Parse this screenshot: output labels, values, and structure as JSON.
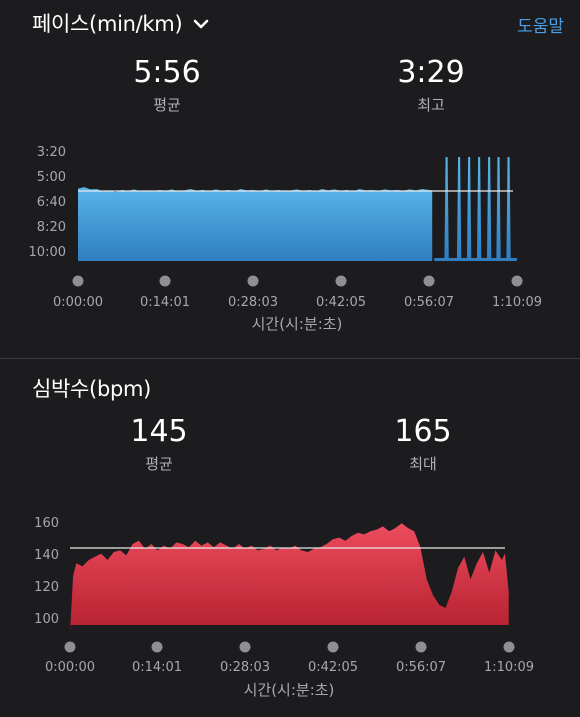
{
  "pace": {
    "title": "페이스(min/km)",
    "help": "도움말",
    "avg_value": "5:56",
    "avg_label": "평균",
    "max_value": "3:29",
    "max_label": "최고",
    "chart_data": {
      "type": "area",
      "color": "#4aa3e0",
      "ylabels": [
        "3:20",
        "5:00",
        "6:40",
        "8:20",
        "10:00"
      ],
      "xlabels": [
        "0:00:00",
        "0:14:01",
        "0:28:03",
        "0:42:05",
        "0:56:07",
        "1:10:09"
      ],
      "xlabel": "시간(시:분:초)",
      "average_line": "5:56",
      "series": [
        {
          "x": 0,
          "y": 5.0
        },
        {
          "x": 1,
          "y": 4.85
        },
        {
          "x": 2,
          "y": 5.1
        },
        {
          "x": 3,
          "y": 5.05
        },
        {
          "x": 4,
          "y": 5.3
        },
        {
          "x": 5,
          "y": 5.2
        },
        {
          "x": 6,
          "y": 5.4
        },
        {
          "x": 7,
          "y": 5.15
        },
        {
          "x": 8,
          "y": 5.25
        },
        {
          "x": 9,
          "y": 5.1
        },
        {
          "x": 10,
          "y": 5.35
        },
        {
          "x": 11,
          "y": 5.2
        },
        {
          "x": 12,
          "y": 5.3
        },
        {
          "x": 13,
          "y": 5.15
        },
        {
          "x": 14,
          "y": 5.25
        },
        {
          "x": 15,
          "y": 5.1
        },
        {
          "x": 16,
          "y": 5.3
        },
        {
          "x": 17,
          "y": 5.2
        },
        {
          "x": 18,
          "y": 5.05
        },
        {
          "x": 19,
          "y": 5.25
        },
        {
          "x": 20,
          "y": 5.15
        },
        {
          "x": 21,
          "y": 5.3
        },
        {
          "x": 22,
          "y": 5.1
        },
        {
          "x": 23,
          "y": 5.25
        },
        {
          "x": 24,
          "y": 5.15
        },
        {
          "x": 25,
          "y": 5.3
        },
        {
          "x": 26,
          "y": 5.05
        },
        {
          "x": 27,
          "y": 5.2
        },
        {
          "x": 28,
          "y": 5.15
        },
        {
          "x": 29,
          "y": 5.3
        },
        {
          "x": 30,
          "y": 5.1
        },
        {
          "x": 31,
          "y": 5.25
        },
        {
          "x": 32,
          "y": 5.15
        },
        {
          "x": 33,
          "y": 5.3
        },
        {
          "x": 34,
          "y": 5.2
        },
        {
          "x": 35,
          "y": 5.1
        },
        {
          "x": 36,
          "y": 5.25
        },
        {
          "x": 37,
          "y": 5.15
        },
        {
          "x": 38,
          "y": 5.3
        },
        {
          "x": 39,
          "y": 5.05
        },
        {
          "x": 40,
          "y": 5.2
        },
        {
          "x": 41,
          "y": 5.1
        },
        {
          "x": 42,
          "y": 5.25
        },
        {
          "x": 43,
          "y": 5.15
        },
        {
          "x": 44,
          "y": 5.3
        },
        {
          "x": 45,
          "y": 5.05
        },
        {
          "x": 46,
          "y": 5.2
        },
        {
          "x": 47,
          "y": 5.15
        },
        {
          "x": 48,
          "y": 5.25
        },
        {
          "x": 49,
          "y": 5.1
        },
        {
          "x": 50,
          "y": 5.2
        },
        {
          "x": 51,
          "y": 5.15
        },
        {
          "x": 52,
          "y": 5.25
        },
        {
          "x": 53,
          "y": 5.1
        },
        {
          "x": 54,
          "y": 5.2
        },
        {
          "x": 55,
          "y": 5.05
        },
        {
          "x": 56,
          "y": 5.15
        },
        {
          "x": 56.6,
          "y": 5.2
        }
      ],
      "spikes": [
        58.9,
        60.9,
        62.5,
        64.1,
        65.7,
        67.2,
        68.8
      ]
    }
  },
  "hr": {
    "title": "심박수(bpm)",
    "avg_value": "145",
    "avg_label": "평균",
    "max_value": "165",
    "max_label": "최대",
    "chart_data": {
      "type": "area",
      "color": "#e0344a",
      "ylabels": [
        "160",
        "140",
        "120",
        "100"
      ],
      "xlabels": [
        "0:00:00",
        "0:14:01",
        "0:28:03",
        "0:42:05",
        "0:56:07",
        "1:10:09"
      ],
      "xlabel": "시간(시:분:초)",
      "average_line": 145,
      "series": [
        {
          "x": 0,
          "y": 95
        },
        {
          "x": 0.5,
          "y": 130
        },
        {
          "x": 1,
          "y": 138
        },
        {
          "x": 2,
          "y": 136
        },
        {
          "x": 3,
          "y": 140
        },
        {
          "x": 4,
          "y": 142
        },
        {
          "x": 5,
          "y": 144
        },
        {
          "x": 6,
          "y": 140
        },
        {
          "x": 7,
          "y": 145
        },
        {
          "x": 8,
          "y": 146
        },
        {
          "x": 9,
          "y": 143
        },
        {
          "x": 10,
          "y": 150
        },
        {
          "x": 11,
          "y": 152
        },
        {
          "x": 12,
          "y": 147
        },
        {
          "x": 13,
          "y": 150
        },
        {
          "x": 14,
          "y": 146
        },
        {
          "x": 15,
          "y": 149
        },
        {
          "x": 16,
          "y": 147
        },
        {
          "x": 17,
          "y": 151
        },
        {
          "x": 18,
          "y": 150
        },
        {
          "x": 19,
          "y": 148
        },
        {
          "x": 20,
          "y": 152
        },
        {
          "x": 21,
          "y": 149
        },
        {
          "x": 22,
          "y": 151
        },
        {
          "x": 23,
          "y": 148
        },
        {
          "x": 24,
          "y": 151
        },
        {
          "x": 25,
          "y": 149
        },
        {
          "x": 26,
          "y": 147
        },
        {
          "x": 27,
          "y": 150
        },
        {
          "x": 28,
          "y": 147
        },
        {
          "x": 29,
          "y": 149
        },
        {
          "x": 30,
          "y": 146
        },
        {
          "x": 31,
          "y": 147
        },
        {
          "x": 32,
          "y": 149
        },
        {
          "x": 33,
          "y": 146
        },
        {
          "x": 34,
          "y": 148
        },
        {
          "x": 35,
          "y": 147
        },
        {
          "x": 36,
          "y": 149
        },
        {
          "x": 37,
          "y": 146
        },
        {
          "x": 38,
          "y": 145
        },
        {
          "x": 39,
          "y": 147
        },
        {
          "x": 40,
          "y": 148
        },
        {
          "x": 41,
          "y": 150
        },
        {
          "x": 42,
          "y": 153
        },
        {
          "x": 43,
          "y": 154
        },
        {
          "x": 44,
          "y": 152
        },
        {
          "x": 45,
          "y": 155
        },
        {
          "x": 46,
          "y": 157
        },
        {
          "x": 47,
          "y": 156
        },
        {
          "x": 48,
          "y": 158
        },
        {
          "x": 49,
          "y": 159
        },
        {
          "x": 50,
          "y": 161
        },
        {
          "x": 51,
          "y": 158
        },
        {
          "x": 52,
          "y": 160
        },
        {
          "x": 53,
          "y": 163
        },
        {
          "x": 54,
          "y": 160
        },
        {
          "x": 55,
          "y": 158
        },
        {
          "x": 56,
          "y": 148
        },
        {
          "x": 57,
          "y": 128
        },
        {
          "x": 58,
          "y": 118
        },
        {
          "x": 59,
          "y": 112
        },
        {
          "x": 60,
          "y": 110
        },
        {
          "x": 61,
          "y": 120
        },
        {
          "x": 62,
          "y": 135
        },
        {
          "x": 63,
          "y": 142
        },
        {
          "x": 64,
          "y": 128
        },
        {
          "x": 65,
          "y": 138
        },
        {
          "x": 66,
          "y": 145
        },
        {
          "x": 67,
          "y": 132
        },
        {
          "x": 68,
          "y": 146
        },
        {
          "x": 69,
          "y": 140
        },
        {
          "x": 69.5,
          "y": 144
        },
        {
          "x": 70.1,
          "y": 120
        }
      ]
    }
  }
}
